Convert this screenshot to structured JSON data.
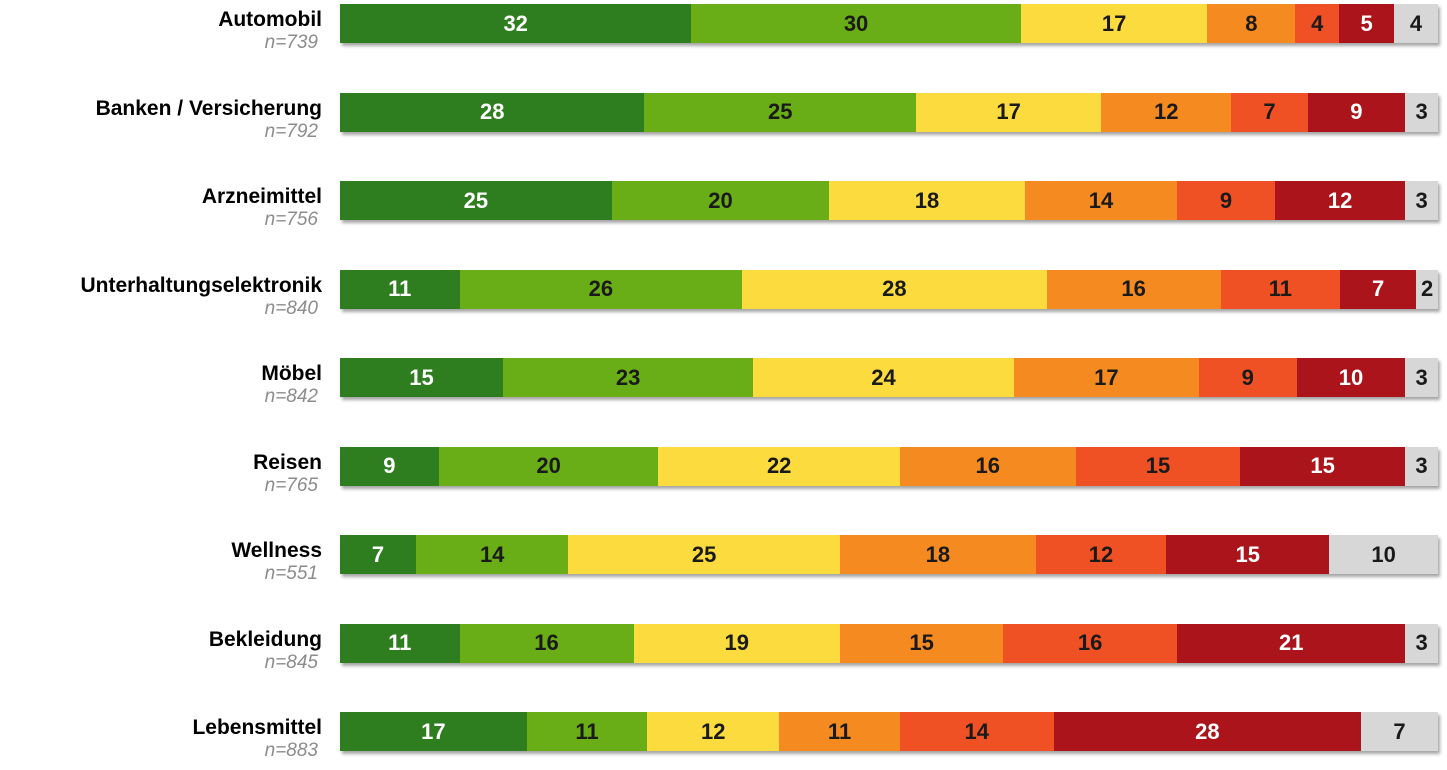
{
  "chart_data": {
    "type": "bar",
    "orientation": "horizontal-stacked-100",
    "categories": [
      "Automobil",
      "Banken / Versicherung",
      "Arzneimittel",
      "Unterhaltungselektronik",
      "Möbel",
      "Reisen",
      "Wellness",
      "Bekleidung",
      "Lebensmittel"
    ],
    "sample_sizes": [
      "n=739",
      "n=792",
      "n=756",
      "n=840",
      "n=842",
      "n=765",
      "n=551",
      "n=845",
      "n=883"
    ],
    "segment_colors": [
      "#2e7d1f",
      "#6aae17",
      "#fcdb3e",
      "#f58b20",
      "#ef5124",
      "#ab141b",
      "#d7d7d7"
    ],
    "label_colors": [
      "#ffffff",
      "#1a1a1a",
      "#1a1a1a",
      "#1a1a1a",
      "#1a1a1a",
      "#ffffff",
      "#1a1a1a"
    ],
    "rows": [
      [
        32,
        30,
        17,
        8,
        4,
        5,
        4
      ],
      [
        28,
        25,
        17,
        12,
        7,
        9,
        3
      ],
      [
        25,
        20,
        18,
        14,
        9,
        12,
        3
      ],
      [
        11,
        26,
        28,
        16,
        11,
        7,
        2
      ],
      [
        15,
        23,
        24,
        17,
        9,
        10,
        3
      ],
      [
        9,
        20,
        22,
        16,
        15,
        15,
        3
      ],
      [
        7,
        14,
        25,
        18,
        12,
        15,
        10
      ],
      [
        11,
        16,
        19,
        15,
        16,
        21,
        3
      ],
      [
        17,
        11,
        12,
        11,
        14,
        28,
        7
      ]
    ]
  }
}
